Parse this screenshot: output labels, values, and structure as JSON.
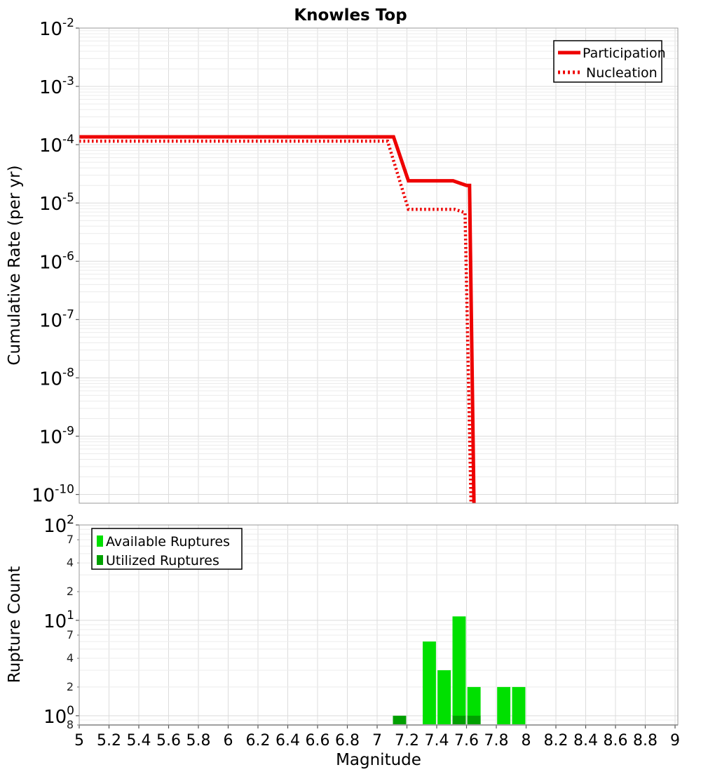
{
  "title": "Knowles Top",
  "colors": {
    "participation": "#ee0000",
    "nucleation": "#ee0000",
    "available": "#00e000",
    "utilized": "#00a000",
    "grid_minor": "#ececec",
    "grid_major": "#dcdcdc",
    "panel_border": "#9a9a9a",
    "axis_line": "#808080"
  },
  "x_axis": {
    "label": "Magnitude",
    "min": 5,
    "max": 9,
    "tick_labels": [
      "5",
      "5.2",
      "5.4",
      "5.6",
      "5.8",
      "6",
      "6.2",
      "6.4",
      "6.6",
      "6.8",
      "7",
      "7.2",
      "7.4",
      "7.6",
      "7.8",
      "8",
      "8.2",
      "8.4",
      "8.6",
      "8.8",
      "9"
    ]
  },
  "chart_data": [
    {
      "type": "line",
      "title": "Knowles Top",
      "ylabel": "Cumulative Rate (per yr)",
      "y_scale": "log",
      "y_major_exponents": [
        -2,
        -3,
        -4,
        -5,
        -6,
        -7,
        -8,
        -9,
        -10
      ],
      "ylim": [
        0.01,
        7e-11
      ],
      "xlim": [
        5,
        9
      ],
      "grid": true,
      "legend_position": "top-right",
      "series": [
        {
          "name": "Participation",
          "line": "solid",
          "color": "#ee0000",
          "points": [
            [
              5.0,
              0.000136
            ],
            [
              7.11,
              0.000136
            ],
            [
              7.21,
              2.4e-05
            ],
            [
              7.51,
              2.4e-05
            ],
            [
              7.6,
              2e-05
            ],
            [
              7.62,
              2e-05
            ],
            [
              7.65,
              7e-11
            ]
          ]
        },
        {
          "name": "Nucleation",
          "line": "dotted",
          "color": "#ee0000",
          "points": [
            [
              5.0,
              0.000115
            ],
            [
              7.07,
              0.000115
            ],
            [
              7.21,
              7.8e-06
            ],
            [
              7.52,
              7.8e-06
            ],
            [
              7.59,
              6.8e-06
            ],
            [
              7.63,
              7e-11
            ]
          ]
        }
      ]
    },
    {
      "type": "bar",
      "ylabel": "Rupture Count",
      "xlabel": "Magnitude",
      "y_scale": "log",
      "y_major_exponents": [
        2,
        1,
        0
      ],
      "y_minor_labeled_ticks": [
        {
          "value": 70,
          "label": "7"
        },
        {
          "value": 40,
          "label": "4"
        },
        {
          "value": 20,
          "label": "2"
        },
        {
          "value": 7,
          "label": "7"
        },
        {
          "value": 4,
          "label": "4"
        },
        {
          "value": 2,
          "label": "2"
        },
        {
          "value": 0.8,
          "label": "8"
        }
      ],
      "ylim": [
        0.8,
        100
      ],
      "xlim": [
        5,
        9
      ],
      "bin_width": 0.1,
      "grid": true,
      "legend_position": "top-left",
      "series": [
        {
          "name": "Available Ruptures",
          "color": "#00e000",
          "bars": [
            {
              "magnitude": 7.35,
              "count": 6
            },
            {
              "magnitude": 7.45,
              "count": 3
            },
            {
              "magnitude": 7.55,
              "count": 11
            },
            {
              "magnitude": 7.65,
              "count": 2
            },
            {
              "magnitude": 7.85,
              "count": 2
            },
            {
              "magnitude": 7.95,
              "count": 2
            }
          ]
        },
        {
          "name": "Utilized Ruptures",
          "color": "#00a000",
          "bars": [
            {
              "magnitude": 7.15,
              "count": 1
            },
            {
              "magnitude": 7.55,
              "count": 1
            },
            {
              "magnitude": 7.65,
              "count": 1
            }
          ]
        }
      ]
    }
  ]
}
